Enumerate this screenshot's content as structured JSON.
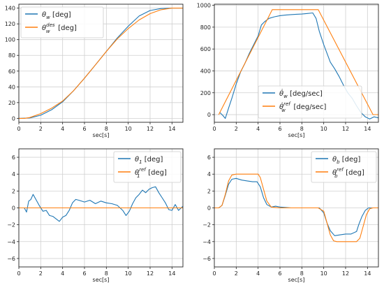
{
  "colors": {
    "blue": "#1f77b4",
    "orange": "#ff7f0e",
    "grid": "#d0d0d0",
    "frame": "#222222"
  },
  "chart_data": [
    {
      "type": "line",
      "xlabel": "sec[s]",
      "xlim": [
        0,
        15
      ],
      "ylim": [
        -5,
        145
      ],
      "xticks": [
        0,
        2,
        4,
        6,
        8,
        10,
        12,
        14
      ],
      "yticks": [
        0,
        20,
        40,
        60,
        80,
        100,
        120,
        140
      ],
      "grid": true,
      "legend": "top-left",
      "series": [
        {
          "key": "theta_w",
          "color": "blue",
          "legend": {
            "sym": "θ",
            "sub": "w",
            "sup": "",
            "unit": " [deg]"
          },
          "x": [
            0,
            1,
            2,
            3,
            4,
            5,
            6,
            7,
            8,
            9,
            10,
            11,
            12,
            13,
            14,
            15
          ],
          "y": [
            0,
            0.5,
            4,
            11,
            21,
            35,
            51,
            68,
            85,
            102,
            117,
            130,
            137,
            139.5,
            140,
            140
          ]
        },
        {
          "key": "theta_w_des",
          "color": "orange",
          "legend": {
            "sym": "θ",
            "sub": "w",
            "sup": "des",
            "unit": " [deg]"
          },
          "x": [
            0,
            0.5,
            1,
            2,
            3,
            4,
            5,
            6,
            7,
            8,
            9,
            10,
            11,
            12,
            13,
            14,
            15
          ],
          "y": [
            0,
            0,
            1,
            6,
            13,
            22,
            35,
            51,
            68,
            85,
            101,
            114,
            125,
            133,
            138,
            140,
            140
          ]
        }
      ]
    },
    {
      "type": "line",
      "xlabel": "sec[s]",
      "xlim": [
        0,
        15
      ],
      "ylim": [
        -70,
        1010
      ],
      "xticks": [
        0,
        2,
        4,
        6,
        8,
        10,
        12,
        14
      ],
      "yticks": [
        0,
        200,
        400,
        600,
        800,
        1000
      ],
      "grid": true,
      "legend": "bottom-center",
      "series": [
        {
          "key": "theta_w_dot",
          "color": "blue",
          "legend": {
            "sym": "θ̇",
            "sub": "w",
            "sup": "",
            "unit": " [deg/sec]"
          },
          "x": [
            0.5,
            0.8,
            1.0,
            1.3,
            1.6,
            2.0,
            2.4,
            2.8,
            3.2,
            3.6,
            4.0,
            4.3,
            4.6,
            5.0,
            5.5,
            6.0,
            6.5,
            7.0,
            7.5,
            8.0,
            8.5,
            9.0,
            9.3,
            9.6,
            10.0,
            10.3,
            10.6,
            11.0,
            11.4,
            11.8,
            12.2,
            12.6,
            13.0,
            13.4,
            13.8,
            14.2,
            14.6,
            15.0
          ],
          "y": [
            20,
            -10,
            -35,
            60,
            150,
            280,
            390,
            470,
            560,
            640,
            720,
            820,
            850,
            880,
            895,
            905,
            910,
            915,
            918,
            920,
            925,
            930,
            880,
            760,
            640,
            560,
            480,
            420,
            350,
            270,
            200,
            150,
            80,
            20,
            -20,
            -40,
            -20,
            -30
          ]
        },
        {
          "key": "theta_w_dot_ref",
          "color": "orange",
          "legend": {
            "sym": "θ̇",
            "sub": "w",
            "sup": "ref",
            "unit": " [deg/sec]"
          },
          "x": [
            0.4,
            5.3,
            9.5,
            14.5,
            15.0
          ],
          "y": [
            0,
            960,
            960,
            0,
            0
          ]
        }
      ]
    },
    {
      "type": "line",
      "xlabel": "sec[s]",
      "xlim": [
        0,
        15
      ],
      "ylim": [
        -7,
        7
      ],
      "xticks": [
        0,
        2,
        4,
        6,
        8,
        10,
        12,
        14
      ],
      "yticks": [
        -6,
        -4,
        -2,
        0,
        2,
        4,
        6
      ],
      "grid": true,
      "legend": "top-right",
      "series": [
        {
          "key": "theta_1",
          "color": "blue",
          "legend": {
            "sym": "θ",
            "sub": "1",
            "sup": "",
            "unit": " [deg]"
          },
          "x": [
            0,
            0.5,
            0.7,
            0.9,
            1.1,
            1.3,
            1.6,
            1.9,
            2.2,
            2.5,
            2.8,
            3.1,
            3.4,
            3.7,
            4.0,
            4.3,
            4.6,
            4.9,
            5.2,
            5.5,
            6.0,
            6.5,
            7.0,
            7.5,
            8.0,
            8.5,
            9.0,
            9.5,
            9.8,
            10.1,
            10.4,
            10.7,
            11.0,
            11.3,
            11.6,
            11.9,
            12.2,
            12.5,
            12.8,
            13.1,
            13.4,
            13.7,
            14.0,
            14.3,
            14.6,
            15.0
          ],
          "y": [
            0,
            0,
            -0.5,
            0.8,
            1.0,
            1.6,
            0.9,
            0.2,
            -0.4,
            -0.3,
            -0.9,
            -1.0,
            -1.3,
            -1.6,
            -1.1,
            -0.9,
            -0.3,
            0.6,
            1.0,
            0.9,
            0.7,
            0.9,
            0.5,
            0.8,
            0.6,
            0.5,
            0.3,
            -0.3,
            -0.9,
            -0.4,
            0.5,
            1.2,
            1.6,
            2.1,
            1.8,
            2.2,
            2.4,
            2.5,
            1.8,
            1.2,
            0.6,
            -0.2,
            -0.3,
            0.4,
            -0.3,
            0.2
          ]
        },
        {
          "key": "theta_1_ref",
          "color": "orange",
          "legend": {
            "sym": "θ",
            "sub": "1",
            "sup": "ref",
            "unit": " [deg]"
          },
          "x": [
            0,
            15
          ],
          "y": [
            0,
            0
          ]
        }
      ]
    },
    {
      "type": "line",
      "xlabel": "sec[s]",
      "xlim": [
        0,
        15
      ],
      "ylim": [
        -7,
        7
      ],
      "xticks": [
        0,
        2,
        4,
        6,
        8,
        10,
        12,
        14
      ],
      "yticks": [
        -6,
        -4,
        -2,
        0,
        2,
        4,
        6
      ],
      "grid": true,
      "legend": "top-right",
      "series": [
        {
          "key": "theta_b",
          "color": "blue",
          "legend": {
            "sym": "θ",
            "sub": "b",
            "sup": "",
            "unit": " [deg]"
          },
          "x": [
            0,
            0.4,
            0.7,
            1.0,
            1.3,
            1.6,
            2.0,
            2.5,
            3.0,
            3.5,
            3.9,
            4.2,
            4.5,
            4.8,
            5.2,
            5.6,
            6.0,
            7.0,
            8.0,
            9.0,
            9.6,
            10.0,
            10.3,
            10.6,
            11.0,
            11.5,
            12.0,
            12.5,
            13.0,
            13.2,
            13.5,
            13.8,
            14.1,
            14.4,
            14.7,
            15.0
          ],
          "y": [
            0,
            0,
            0.3,
            1.5,
            2.8,
            3.4,
            3.5,
            3.3,
            3.2,
            3.1,
            3.1,
            2.5,
            1.2,
            0.4,
            0.1,
            0.2,
            0.1,
            0,
            0,
            0,
            0,
            -0.6,
            -1.8,
            -2.7,
            -3.3,
            -3.2,
            -3.1,
            -3.1,
            -2.8,
            -2.0,
            -1.0,
            -0.3,
            0,
            0,
            0,
            0
          ]
        },
        {
          "key": "theta_b_ref",
          "color": "orange",
          "legend": {
            "sym": "θ",
            "sub": "b",
            "sup": "ref",
            "unit": " [deg]"
          },
          "x": [
            0,
            0.4,
            0.7,
            1.0,
            1.3,
            1.6,
            2.0,
            3.5,
            4.0,
            4.2,
            4.5,
            4.8,
            5.2,
            6.0,
            9.5,
            10.0,
            10.3,
            10.6,
            10.9,
            11.2,
            11.5,
            13.0,
            13.3,
            13.6,
            13.9,
            14.2,
            14.5,
            15.0
          ],
          "y": [
            0,
            0,
            0.3,
            1.6,
            3.2,
            3.9,
            4.0,
            4.0,
            4.0,
            3.6,
            2.2,
            0.8,
            0.1,
            0,
            0,
            -0.4,
            -1.8,
            -3.2,
            -3.9,
            -4.0,
            -4.0,
            -4.0,
            -3.6,
            -2.2,
            -0.8,
            -0.1,
            0,
            0
          ]
        }
      ]
    }
  ]
}
